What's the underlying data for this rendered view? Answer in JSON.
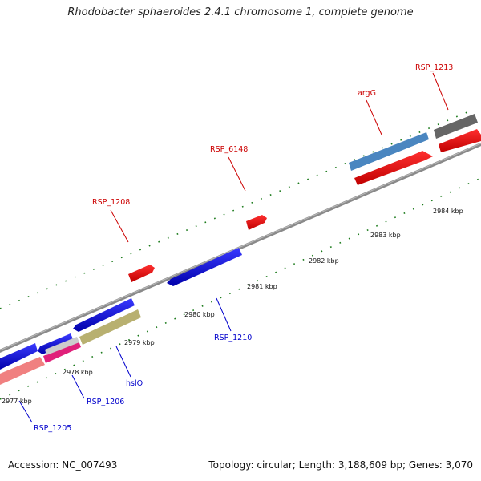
{
  "title": "Rhodobacter sphaeroides 2.4.1 chromosome 1, complete genome",
  "footer": {
    "accession": "Accession: NC_007493",
    "topology": "Topology: circular; Length: 3,188,609 bp; Genes: 3,070"
  },
  "ticks": [
    "2977 kbp",
    "2978 kbp",
    "2979 kbp",
    "2980 kbp",
    "2981 kbp",
    "2982 kbp",
    "2983 kbp",
    "2984 kbp"
  ],
  "genes_top": [
    {
      "label": "RSP_1208",
      "color": "#cc0000"
    },
    {
      "label": "RSP_6148",
      "color": "#cc0000"
    },
    {
      "label": "argG",
      "color": "#cc0000"
    },
    {
      "label": "RSP_1213",
      "color": "#cc0000"
    }
  ],
  "genes_bottom": [
    {
      "label": "RSP_1205",
      "color": "#0000cc"
    },
    {
      "label": "RSP_1206",
      "color": "#0000cc"
    },
    {
      "label": "hslO",
      "color": "#0000cc"
    },
    {
      "label": "RSP_1210",
      "color": "#0000cc"
    }
  ],
  "colors": {
    "forward_gene": "#ff0000",
    "reverse_gene": "#0000ee",
    "backbone": "#888888",
    "tick": "#1a7a1a",
    "highlight_blue": "#4a86c0",
    "dark_gray": "#666666",
    "olive": "#b8b070",
    "pink": "#f08080",
    "magenta": "#e0207a"
  }
}
